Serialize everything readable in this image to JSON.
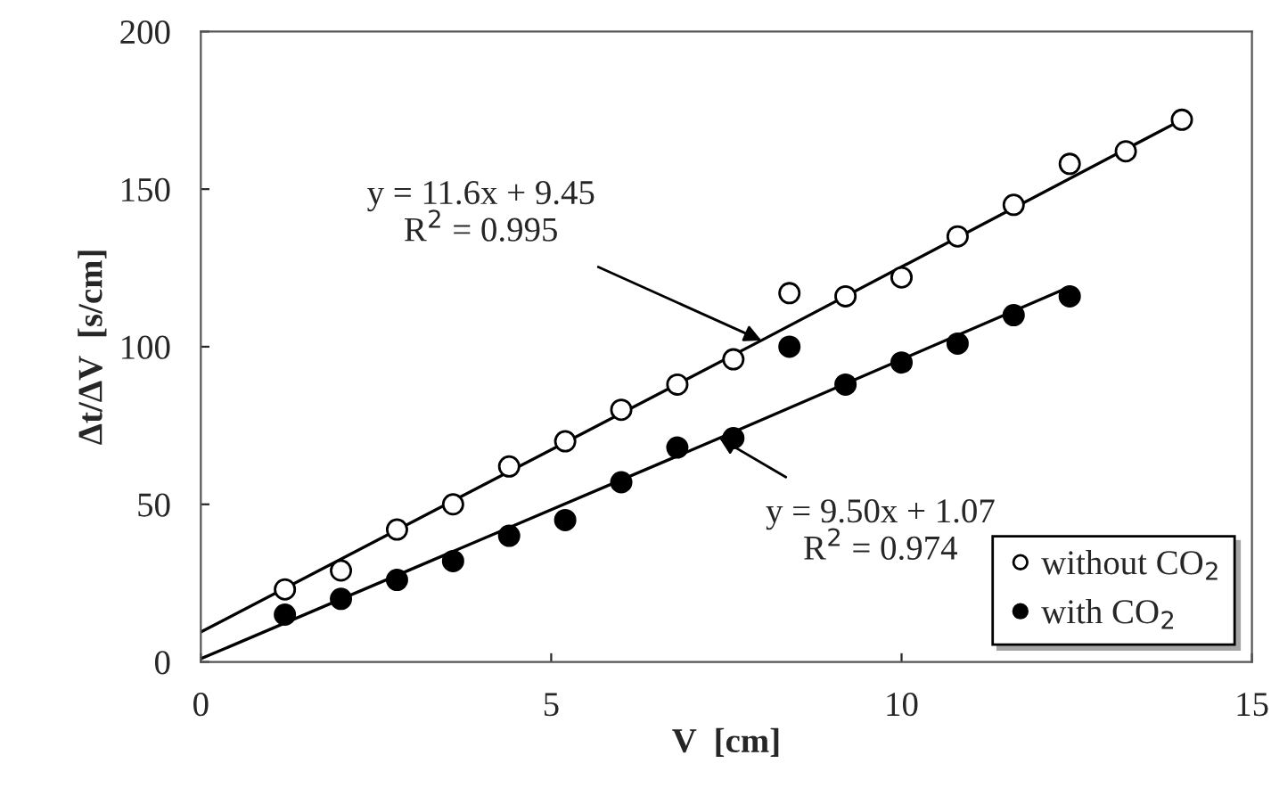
{
  "chart_data": {
    "type": "scatter",
    "xlabel": "V  [cm]",
    "ylabel": "Δt/ΔV  [s/cm]",
    "xlim": [
      0,
      15
    ],
    "xticks": [
      0,
      5,
      10,
      15
    ],
    "ylim": [
      0,
      200
    ],
    "yticks": [
      0,
      50,
      100,
      150,
      200
    ],
    "grid": false,
    "legend": "bottom right",
    "marker": "circle",
    "series": [
      {
        "name": "without CO$_{2}$",
        "color": "#ffffff",
        "x": [
          1.2,
          2.0,
          2.8,
          3.6,
          4.4,
          5.2,
          6.0,
          6.8,
          7.6,
          8.4,
          9.2,
          10.0,
          10.8,
          11.6,
          12.4,
          13.2,
          14.0
        ],
        "values": [
          23,
          29,
          42,
          50,
          62,
          70,
          80,
          88,
          96,
          117,
          116,
          122,
          135,
          145,
          158,
          162,
          172
        ]
      },
      {
        "name": "with CO$_{2}$",
        "color": "#000000",
        "x": [
          1.2,
          2.0,
          2.8,
          3.6,
          4.4,
          5.2,
          6.0,
          6.8,
          7.6,
          8.4,
          9.2,
          10.0,
          10.8,
          11.6,
          12.4
        ],
        "values": [
          15,
          20,
          26,
          32,
          40,
          45,
          57,
          68,
          71,
          100,
          88,
          95,
          101,
          110,
          116
        ]
      },
      {
        "type": "line",
        "marker": "none",
        "color": "#000000",
        "x": [
          0,
          8,
          14
        ],
        "values": [
          9.5,
          102,
          172
        ]
      },
      {
        "type": "line",
        "marker": "none",
        "color": "#000000",
        "x": [
          0,
          7.4,
          12.4
        ],
        "values": [
          1,
          71,
          119
        ]
      }
    ],
    "annotations": [
      {
        "text": "y = 11.6x + 9.45\nR$^{2}$ = 0.995",
        "x": 8,
        "y": 102
      },
      {
        "text": "y = 9.50x + 1.07\nR$^{2}$ = 0.974",
        "x": 7.4,
        "y": 71
      }
    ]
  }
}
